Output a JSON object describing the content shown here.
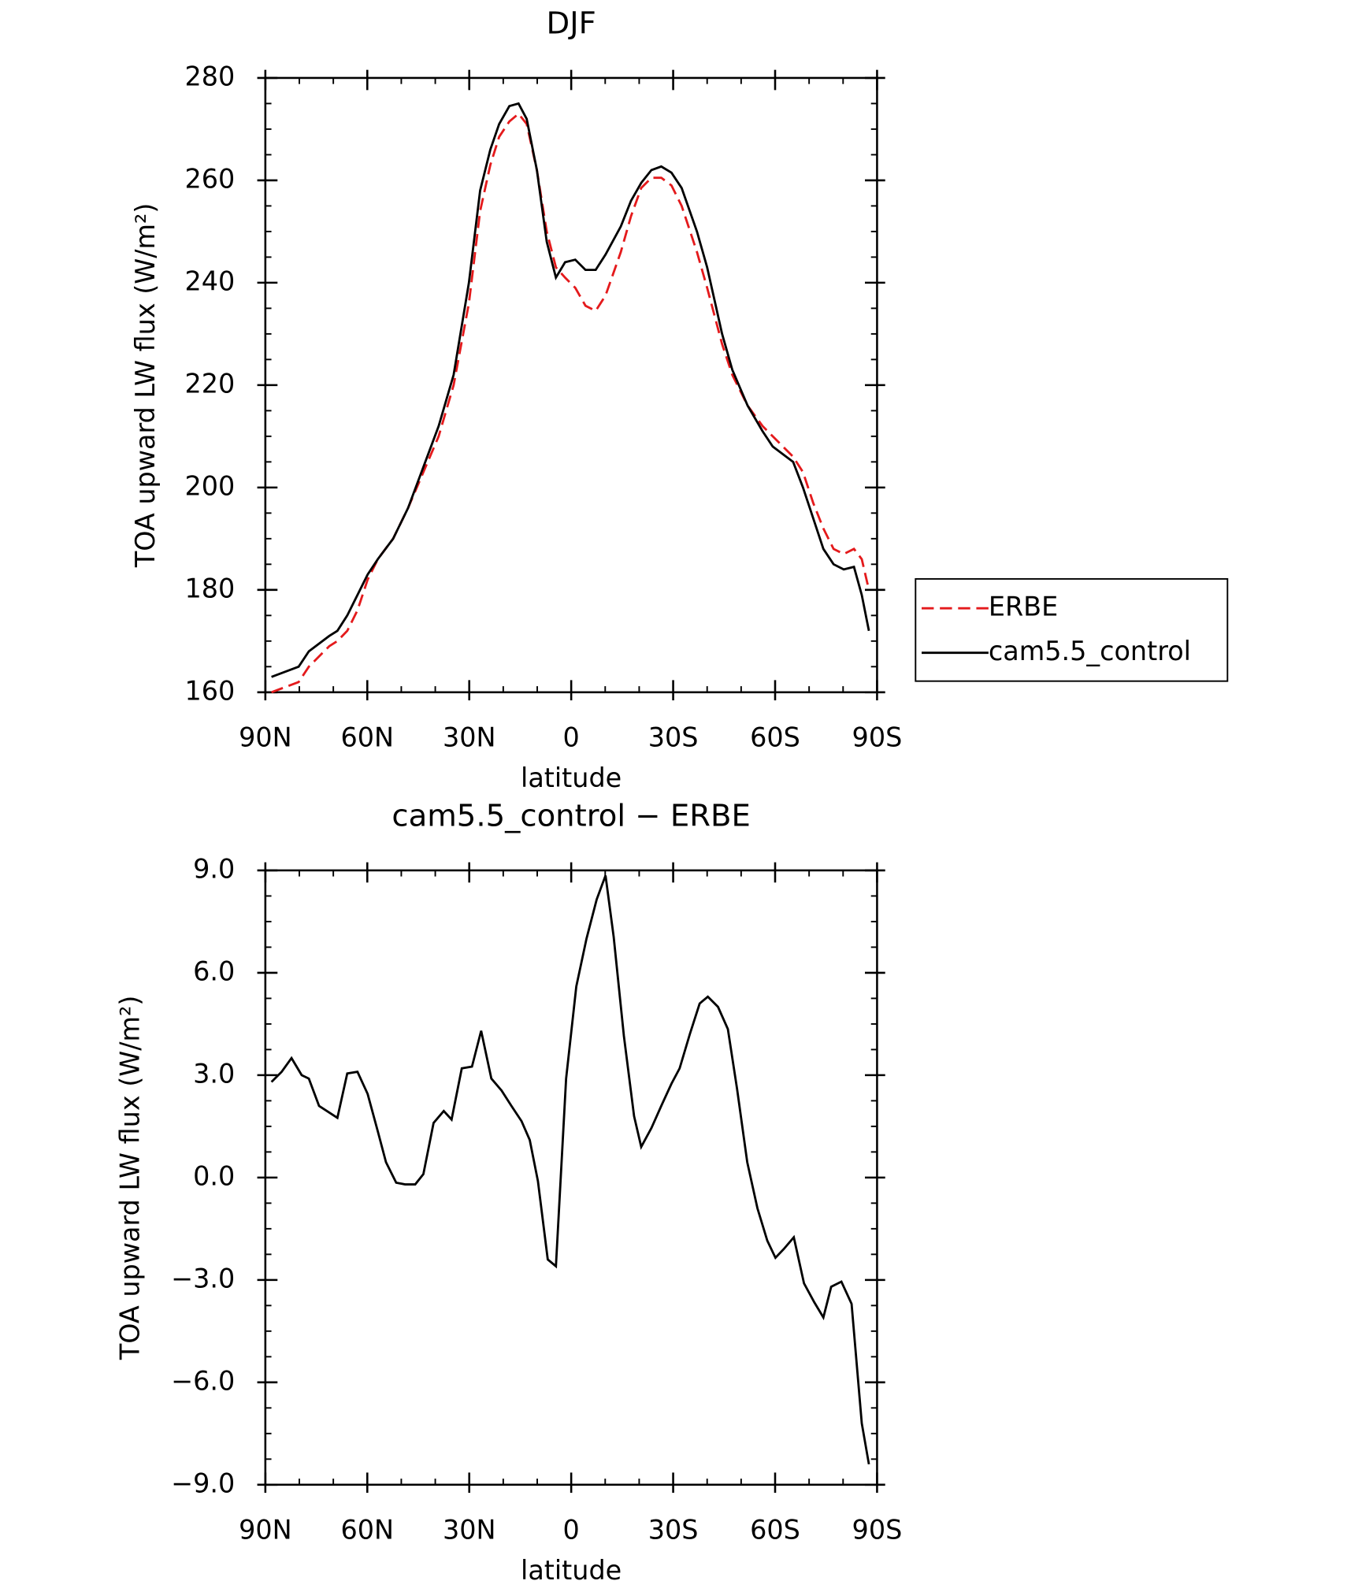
{
  "chart_data": [
    {
      "type": "line",
      "title": "DJF",
      "xlabel": "latitude",
      "ylabel": "TOA upward LW flux (W/m²)",
      "x": [
        88.2,
        80.2,
        77.2,
        71.2,
        68.8,
        65.9,
        62.9,
        59.9,
        56.9,
        52.4,
        48,
        43.5,
        39,
        34.6,
        30.1,
        26.8,
        23.8,
        21.2,
        18.2,
        15.5,
        13.1,
        10.1,
        7.2,
        4.5,
        1.8,
        -1.2,
        -4.2,
        -7.2,
        -10.1,
        -14.6,
        -17.6,
        -20.6,
        -23.6,
        -26.5,
        -29.5,
        -32.5,
        -37,
        -40,
        -44.4,
        -47.4,
        -51.9,
        -56.3,
        -59.3,
        -65.3,
        -68.2,
        -71.2,
        -74.2,
        -77.2,
        -80.2,
        -83.2,
        -85.5,
        -87.6
      ],
      "series": [
        {
          "name": "ERBE",
          "color": "#e41a1c",
          "dash": true,
          "values": [
            160,
            162,
            165,
            169,
            170,
            172,
            176,
            182,
            186,
            190,
            196,
            203,
            210,
            220,
            236,
            254,
            263,
            268.5,
            271.5,
            273,
            271,
            262,
            250,
            243,
            241,
            239,
            235.5,
            234.5,
            237.5,
            246,
            253,
            258.5,
            260.5,
            260.5,
            259,
            255,
            246,
            239,
            228,
            222,
            216,
            212,
            210,
            206,
            203,
            197,
            192,
            188,
            187,
            188,
            186,
            180
          ]
        },
        {
          "name": "cam5.5_control",
          "color": "#000000",
          "dash": false,
          "values": [
            163,
            165,
            168,
            171,
            172,
            175,
            179,
            183,
            186,
            190,
            196,
            204,
            212,
            222,
            240,
            258,
            266,
            271,
            274.5,
            275,
            272,
            262,
            248,
            241,
            244,
            244.5,
            242.5,
            242.5,
            245.5,
            251,
            256,
            259.5,
            262,
            262.7,
            261.5,
            258.5,
            250,
            243,
            230,
            223,
            216,
            211,
            208,
            205,
            200,
            194,
            188,
            185,
            184,
            184.5,
            179,
            172
          ]
        }
      ],
      "xlim": [
        90,
        -90
      ],
      "xticks": [
        {
          "value": 90,
          "label": "90N"
        },
        {
          "value": 60,
          "label": "60N"
        },
        {
          "value": 30,
          "label": "30N"
        },
        0,
        {
          "value": -30,
          "label": "30S"
        },
        {
          "value": -60,
          "label": "60S"
        },
        {
          "value": -90,
          "label": "90S"
        }
      ],
      "ylim": [
        160,
        280
      ],
      "yticks": [
        160,
        180,
        200,
        220,
        240,
        260,
        280
      ],
      "legend": "outside-right"
    },
    {
      "type": "line",
      "title": "cam5.5_control − ERBE",
      "xlabel": "latitude",
      "ylabel": "TOA upward LW flux (W/m²)",
      "x": [
        88.2,
        85.2,
        82.3,
        79.3,
        77.2,
        74.2,
        68.8,
        65.9,
        62.9,
        59.9,
        56.9,
        54.5,
        51.5,
        48.9,
        45.9,
        43.5,
        40.5,
        37.5,
        35.2,
        32.2,
        29.2,
        26.5,
        23.5,
        20.5,
        17.6,
        14.6,
        12.2,
        9.8,
        6.9,
        4.5,
        1.5,
        -1.5,
        -4.5,
        -7.5,
        -10.1,
        -12.5,
        -15.5,
        -18.5,
        -20.6,
        -23.6,
        -26.5,
        -29.5,
        -31.9,
        -34.9,
        -37.8,
        -40.2,
        -43.2,
        -46.1,
        -48.8,
        -51.8,
        -54.8,
        -57.7,
        -60.1,
        -62.5,
        -65.5,
        -68.5,
        -71.5,
        -74.2,
        -76.5,
        -79.5,
        -82.5,
        -85.5,
        -87.6
      ],
      "series": [
        {
          "name": "cam5.5_control − ERBE",
          "color": "#000000",
          "dash": false,
          "values": [
            2.8,
            3.1,
            3.5,
            3.0,
            2.9,
            2.1,
            1.75,
            3.05,
            3.1,
            2.45,
            1.35,
            0.45,
            -0.15,
            -0.2,
            -0.2,
            0.1,
            1.6,
            1.95,
            1.7,
            3.2,
            3.25,
            4.3,
            2.9,
            2.55,
            2.1,
            1.65,
            1.1,
            -0.1,
            -2.4,
            -2.6,
            2.9,
            5.6,
            7.0,
            8.15,
            8.85,
            7.05,
            4.15,
            1.8,
            0.9,
            1.45,
            2.1,
            2.75,
            3.2,
            4.2,
            5.1,
            5.3,
            5.0,
            4.35,
            2.6,
            0.45,
            -0.9,
            -1.85,
            -2.35,
            -2.1,
            -1.75,
            -3.1,
            -3.65,
            -4.1,
            -3.2,
            -3.05,
            -3.7,
            -7.2,
            -8.4
          ]
        }
      ],
      "xlim": [
        90,
        -90
      ],
      "xticks": [
        {
          "value": 90,
          "label": "90N"
        },
        {
          "value": 60,
          "label": "60N"
        },
        {
          "value": 30,
          "label": "30N"
        },
        0,
        {
          "value": -30,
          "label": "30S"
        },
        {
          "value": -60,
          "label": "60S"
        },
        {
          "value": -90,
          "label": "90S"
        }
      ],
      "ylim": [
        -9,
        9
      ],
      "yticks": [
        {
          "value": -9,
          "label": "−9.0"
        },
        {
          "value": -6,
          "label": "−6.0"
        },
        {
          "value": -3,
          "label": "−3.0"
        },
        {
          "value": 0,
          "label": "0.0"
        },
        {
          "value": 3,
          "label": "3.0"
        },
        {
          "value": 6,
          "label": "6.0"
        },
        {
          "value": 9,
          "label": "9.0"
        }
      ]
    }
  ]
}
